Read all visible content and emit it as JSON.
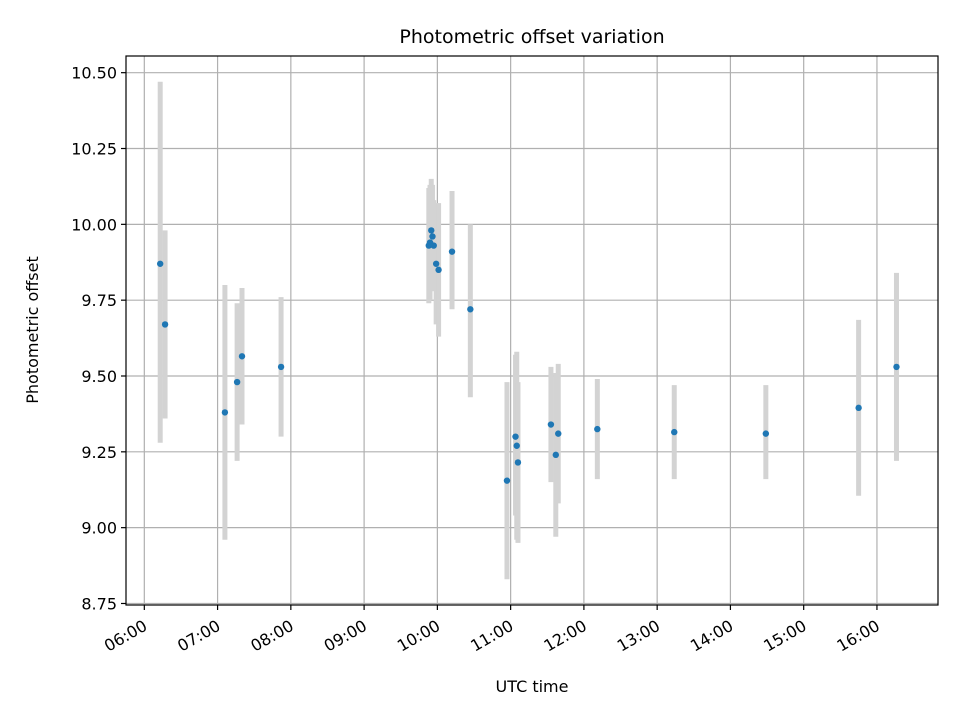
{
  "chart_data": {
    "type": "scatter",
    "title": "Photometric offset variation",
    "xlabel": "UTC time",
    "ylabel": "Photometric offset",
    "xlim": [
      "05:45",
      "16:50"
    ],
    "ylim": [
      8.745,
      10.555
    ],
    "x_ticks": [
      "06:00",
      "07:00",
      "08:00",
      "09:00",
      "10:00",
      "11:00",
      "12:00",
      "13:00",
      "14:00",
      "15:00",
      "16:00"
    ],
    "y_ticks": [
      "8.75",
      "9.00",
      "9.25",
      "9.50",
      "9.75",
      "10.00",
      "10.25",
      "10.50"
    ],
    "grid": true,
    "colors": {
      "marker": "#1f77b4",
      "errorbar": "#d3d3d3"
    },
    "points": [
      {
        "x": "06:13",
        "y": 9.87,
        "ylo": 9.28,
        "yhi": 10.47
      },
      {
        "x": "06:17",
        "y": 9.67,
        "ylo": 9.36,
        "yhi": 9.98
      },
      {
        "x": "07:06",
        "y": 9.38,
        "ylo": 8.96,
        "yhi": 9.8
      },
      {
        "x": "07:16",
        "y": 9.48,
        "ylo": 9.22,
        "yhi": 9.74
      },
      {
        "x": "07:20",
        "y": 9.565,
        "ylo": 9.34,
        "yhi": 9.79
      },
      {
        "x": "07:52",
        "y": 9.53,
        "ylo": 9.3,
        "yhi": 9.76
      },
      {
        "x": "09:53",
        "y": 9.93,
        "ylo": 9.74,
        "yhi": 10.12
      },
      {
        "x": "09:54",
        "y": 9.94,
        "ylo": 9.75,
        "yhi": 10.13
      },
      {
        "x": "09:55",
        "y": 9.98,
        "ylo": 9.8,
        "yhi": 10.15
      },
      {
        "x": "09:56",
        "y": 9.96,
        "ylo": 9.78,
        "yhi": 10.13
      },
      {
        "x": "09:57",
        "y": 9.93,
        "ylo": 9.78,
        "yhi": 10.08
      },
      {
        "x": "09:59",
        "y": 9.87,
        "ylo": 9.67,
        "yhi": 10.07
      },
      {
        "x": "10:01",
        "y": 9.85,
        "ylo": 9.63,
        "yhi": 10.07
      },
      {
        "x": "10:12",
        "y": 9.91,
        "ylo": 9.72,
        "yhi": 10.11
      },
      {
        "x": "10:27",
        "y": 9.72,
        "ylo": 9.43,
        "yhi": 10.0
      },
      {
        "x": "10:57",
        "y": 9.155,
        "ylo": 8.83,
        "yhi": 9.48
      },
      {
        "x": "11:04",
        "y": 9.3,
        "ylo": 9.04,
        "yhi": 9.57
      },
      {
        "x": "11:05",
        "y": 9.27,
        "ylo": 8.96,
        "yhi": 9.58
      },
      {
        "x": "11:06",
        "y": 9.215,
        "ylo": 8.95,
        "yhi": 9.48
      },
      {
        "x": "11:33",
        "y": 9.34,
        "ylo": 9.15,
        "yhi": 9.53
      },
      {
        "x": "11:37",
        "y": 9.24,
        "ylo": 8.97,
        "yhi": 9.51
      },
      {
        "x": "11:39",
        "y": 9.31,
        "ylo": 9.08,
        "yhi": 9.54
      },
      {
        "x": "12:11",
        "y": 9.325,
        "ylo": 9.16,
        "yhi": 9.49
      },
      {
        "x": "13:14",
        "y": 9.315,
        "ylo": 9.16,
        "yhi": 9.47
      },
      {
        "x": "14:29",
        "y": 9.31,
        "ylo": 9.16,
        "yhi": 9.47
      },
      {
        "x": "15:45",
        "y": 9.395,
        "ylo": 9.105,
        "yhi": 9.685
      },
      {
        "x": "16:16",
        "y": 9.53,
        "ylo": 9.22,
        "yhi": 9.84
      }
    ]
  }
}
